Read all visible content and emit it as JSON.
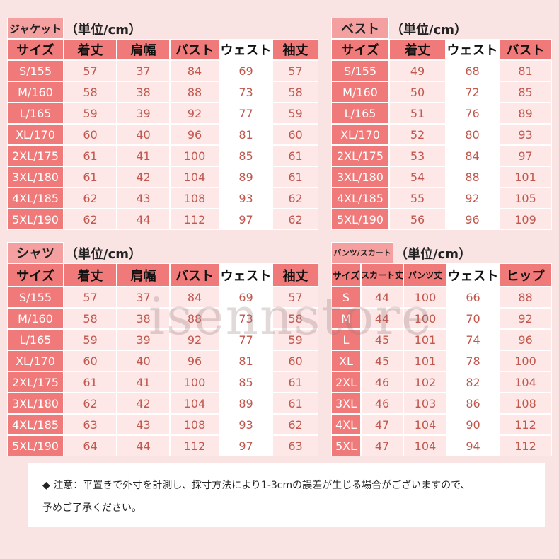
{
  "watermark": "isennstore",
  "tables": [
    {
      "title": "ジャケット",
      "unit": "（単位/cm）",
      "header": [
        "サイズ",
        "着丈",
        "肩幅",
        "バスト",
        "ウェスト",
        "袖丈"
      ],
      "rows": [
        [
          "S/155",
          57,
          37,
          84,
          69,
          57
        ],
        [
          "M/160",
          58,
          38,
          88,
          73,
          58
        ],
        [
          "L/165",
          59,
          39,
          92,
          77,
          59
        ],
        [
          "XL/170",
          60,
          40,
          96,
          81,
          60
        ],
        [
          "2XL/175",
          61,
          41,
          100,
          85,
          61
        ],
        [
          "3XL/180",
          61,
          42,
          104,
          89,
          61
        ],
        [
          "4XL/185",
          62,
          43,
          108,
          93,
          62
        ],
        [
          "5XL/190",
          62,
          44,
          112,
          97,
          62
        ]
      ]
    },
    {
      "title": "ベスト",
      "unit": "（単位/cm）",
      "header": [
        "サイズ",
        "着丈",
        "ウェスト",
        "バスト"
      ],
      "rows": [
        [
          "S/155",
          49,
          68,
          81
        ],
        [
          "M/160",
          50,
          72,
          85
        ],
        [
          "L/165",
          51,
          76,
          89
        ],
        [
          "XL/170",
          52,
          80,
          93
        ],
        [
          "2XL/175",
          53,
          84,
          97
        ],
        [
          "3XL/180",
          54,
          88,
          101
        ],
        [
          "4XL/185",
          55,
          92,
          105
        ],
        [
          "5XL/190",
          56,
          96,
          109
        ]
      ]
    },
    {
      "title": "シャツ",
      "unit": "（単位/cm）",
      "header": [
        "サイズ",
        "着丈",
        "肩幅",
        "バスト",
        "ウェスト",
        "袖丈"
      ],
      "rows": [
        [
          "S/155",
          57,
          37,
          84,
          69,
          57
        ],
        [
          "M/160",
          58,
          38,
          88,
          73,
          58
        ],
        [
          "L/165",
          59,
          39,
          92,
          77,
          59
        ],
        [
          "XL/170",
          60,
          40,
          96,
          81,
          60
        ],
        [
          "2XL/175",
          61,
          41,
          100,
          85,
          61
        ],
        [
          "3XL/180",
          62,
          42,
          104,
          89,
          61
        ],
        [
          "4XL/185",
          63,
          43,
          108,
          93,
          62
        ],
        [
          "5XL/190",
          64,
          44,
          112,
          97,
          63
        ]
      ]
    },
    {
      "title": "パンツ/スカート",
      "unit": "（単位/cm）",
      "header": [
        "サイズ",
        "スカート丈",
        "パンツ丈",
        "ウェスト",
        "ヒップ"
      ],
      "rows": [
        [
          "S",
          44,
          100,
          66,
          88
        ],
        [
          "M",
          44,
          100,
          70,
          92
        ],
        [
          "L",
          45,
          101,
          74,
          96
        ],
        [
          "XL",
          45,
          101,
          78,
          100
        ],
        [
          "2XL",
          46,
          102,
          82,
          104
        ],
        [
          "3XL",
          46,
          103,
          86,
          108
        ],
        [
          "4XL",
          47,
          104,
          90,
          112
        ],
        [
          "5XL",
          47,
          104,
          94,
          112
        ]
      ]
    }
  ],
  "note": {
    "lines": [
      "◆ 注意：平置きで外寸を計測し、採寸方法により1-3cmの誤差が生じる場合がございますので、",
      "予めご了承ください。"
    ]
  }
}
